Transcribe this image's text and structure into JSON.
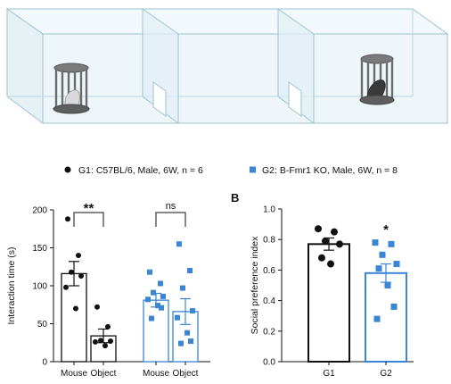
{
  "colors": {
    "g1": "#111111",
    "g2": "#3a86d4",
    "box_line": "#9ec3d0",
    "box_fill": "#eef6fa",
    "cage": "#6b6b6b"
  },
  "illustration": {
    "description_icons": [
      "three-chamber-apparatus",
      "left-cage-with-mouse",
      "right-cage-with-object"
    ]
  },
  "legend": {
    "g1": "G1: C57BL/6, Male, 6W, n = 6",
    "g2": "G2: B-Fmr1 KO, Male, 6W, n = 8"
  },
  "chart_data": [
    {
      "type": "bar",
      "panel": "",
      "ylabel": "Interaction time (s)",
      "xlabel": "",
      "ylim": [
        0,
        200
      ],
      "yticks": [
        0,
        50,
        100,
        150,
        200
      ],
      "categories": [
        "Mouse",
        "Object",
        "Mouse",
        "Object"
      ],
      "groups": [
        "G1",
        "G1",
        "G2",
        "G2"
      ],
      "values": [
        116,
        34,
        81,
        66
      ],
      "errors": [
        16,
        9,
        9,
        17
      ],
      "points": [
        [
          188,
          140,
          118,
          113,
          98,
          70
        ],
        [
          72,
          46,
          28,
          27,
          26,
          21
        ],
        [
          118,
          103,
          91,
          86,
          82,
          74,
          71,
          57
        ],
        [
          155,
          120,
          97,
          67,
          58,
          38,
          27,
          24
        ]
      ],
      "significance": [
        {
          "pair": [
            0,
            1
          ],
          "label": "**"
        },
        {
          "pair": [
            2,
            3
          ],
          "label": "ns"
        }
      ]
    },
    {
      "type": "bar",
      "panel": "B",
      "ylabel": "Social preference index",
      "xlabel": "",
      "ylim": [
        0,
        1.0
      ],
      "yticks": [
        "0.0",
        "0.2",
        "0.4",
        "0.6",
        "0.8",
        "1.0"
      ],
      "categories": [
        "G1",
        "G2"
      ],
      "groups": [
        "G1",
        "G2"
      ],
      "values": [
        0.77,
        0.58
      ],
      "errors": [
        0.04,
        0.06
      ],
      "points": [
        [
          0.87,
          0.85,
          0.79,
          0.77,
          0.68,
          0.64
        ],
        [
          0.78,
          0.77,
          0.7,
          0.64,
          0.61,
          0.5,
          0.36,
          0.28
        ]
      ],
      "significance": [
        {
          "index": 1,
          "label": "*"
        }
      ]
    }
  ]
}
